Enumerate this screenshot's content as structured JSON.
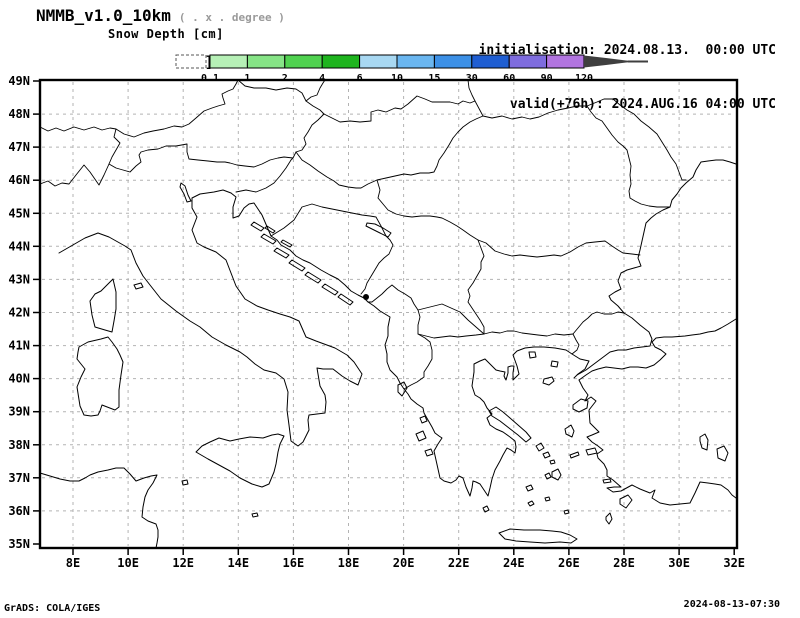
{
  "header": {
    "model": "NMMB_v1.0_10km",
    "resolution_note": "( . x . degree )",
    "variable": "Snow Depth [cm]",
    "init_label": "initialisation:",
    "init_value": "2024.08.13.  00:00 UTC",
    "valid_label": "valid(+76h):",
    "valid_value": "2024.AUG.16 04:00 UTC"
  },
  "colorbar": {
    "levels": [
      "0.1",
      "1",
      "2",
      "4",
      "6",
      "10",
      "15",
      "30",
      "60",
      "90",
      "120"
    ],
    "segment_colors": [
      "#b6f0b6",
      "#86e486",
      "#50d250",
      "#1eb41e",
      "#a8d8f2",
      "#6ab6f0",
      "#3c90e6",
      "#1f5ed2",
      "#7e6cde",
      "#b275e0"
    ],
    "overflow_color": "#3f3f3f",
    "undef_box_color": "#ffffff"
  },
  "map": {
    "lat_labels": [
      "49N",
      "48N",
      "47N",
      "46N",
      "45N",
      "44N",
      "43N",
      "42N",
      "41N",
      "40N",
      "39N",
      "38N",
      "37N",
      "36N",
      "35N"
    ],
    "lon_labels": [
      "8E",
      "10E",
      "12E",
      "14E",
      "16E",
      "18E",
      "20E",
      "22E",
      "24E",
      "26E",
      "28E",
      "30E",
      "32E"
    ],
    "grid_color": "#b3b3b3"
  },
  "footer": {
    "left": "GrADS: COLA/IGES",
    "right": "2024-08-13-07:30"
  }
}
